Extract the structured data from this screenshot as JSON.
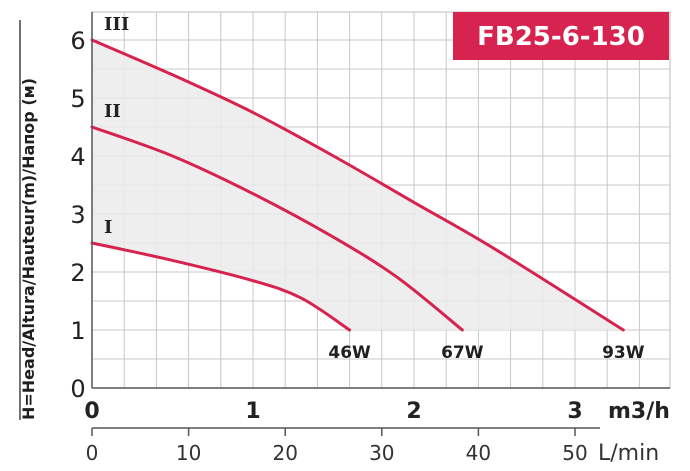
{
  "chart_data": {
    "type": "line",
    "title": "FB25-6-130",
    "ylabel": "H=Head/Altura/Hauteur(m)/Напор (м)",
    "xlabel": "m3/h",
    "xlabel2": "L/min",
    "xlim": [
      0,
      3.5
    ],
    "ylim": [
      0,
      6.5
    ],
    "x_ticks": [
      "0",
      "1",
      "2",
      "3"
    ],
    "x2_ticks": [
      "0",
      "10",
      "20",
      "30",
      "40",
      "50"
    ],
    "y_ticks": [
      "0",
      "1",
      "2",
      "3",
      "4",
      "5",
      "6"
    ],
    "grid": true,
    "colors": {
      "curve": "#d62350",
      "title_bg": "#d62350",
      "grid": "#c8c8c8",
      "fill": "#ebebeb"
    },
    "series": [
      {
        "name": "I",
        "power": "46W",
        "x": [
          0,
          0.5,
          1.0,
          1.3,
          1.6
        ],
        "y": [
          2.5,
          2.2,
          1.85,
          1.55,
          1.0
        ]
      },
      {
        "name": "II",
        "power": "67W",
        "x": [
          0,
          0.5,
          1.0,
          1.5,
          1.9,
          2.3
        ],
        "y": [
          4.5,
          4.0,
          3.35,
          2.6,
          1.9,
          1.0
        ]
      },
      {
        "name": "III",
        "power": "93W",
        "x": [
          0,
          0.5,
          1.0,
          1.5,
          2.0,
          2.5,
          3.3
        ],
        "y": [
          6.0,
          5.4,
          4.75,
          4.0,
          3.2,
          2.4,
          1.0
        ]
      }
    ]
  }
}
